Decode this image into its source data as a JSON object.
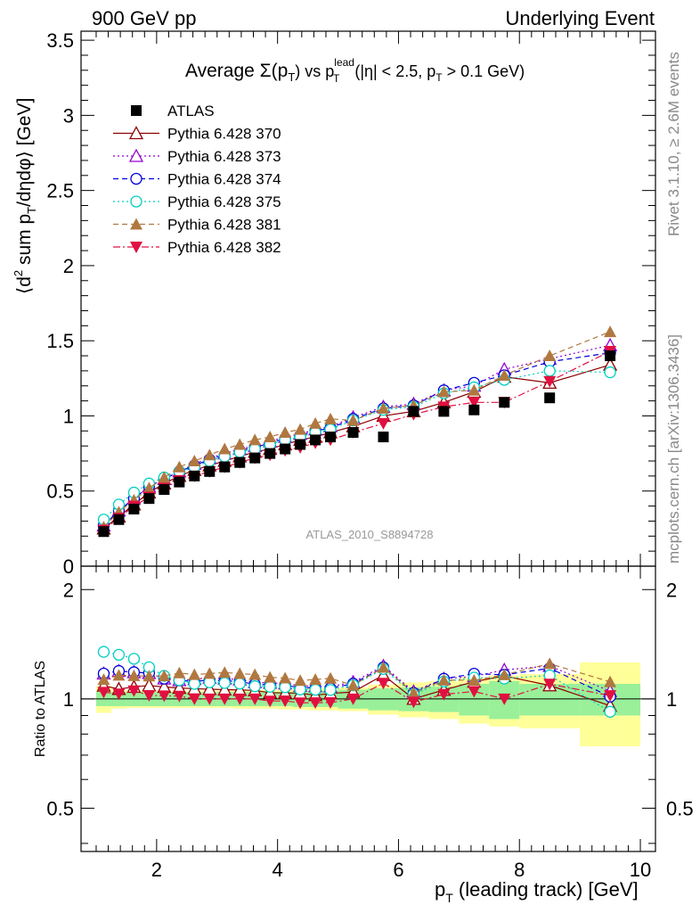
{
  "header": {
    "left": "900 GeV pp",
    "right": "Underlying Event"
  },
  "side": {
    "rivet": "Rivet 3.1.10, ≥ 2.6M events",
    "mcplots": "mcplots.cern.ch [arXiv:1306.3436]"
  },
  "chart_data": {
    "type": "scatter",
    "title_parts": {
      "pre": "Average ",
      "sigma": "Σ(p",
      "sigma_sub": "T",
      "mid": ") vs p",
      "lead_sup": "lead",
      "lead_sub": "T",
      "cuts": " (|η| < 2.5, p",
      "cuts_sub": "T",
      "tail": " > 0.1 GeV)"
    },
    "analysis_label": "ATLAS_2010_S8894728",
    "ylabel_main": "⟨d² sum p_T/dηdφ⟩ [GeV]",
    "ylabel_ratio": "Ratio to ATLAS",
    "xlabel": "p_T (leading track) [GeV]",
    "xlim": [
      0.75,
      10.25
    ],
    "ylim_main": [
      0,
      3.56
    ],
    "ylim_ratio": [
      0.38,
      2.32
    ],
    "ratio_scale": "log",
    "x_ticks": [
      "2",
      "4",
      "6",
      "8",
      "10"
    ],
    "y_ticks_main": [
      "0",
      "0.5",
      "1",
      "1.5",
      "2",
      "2.5",
      "3",
      "3.5"
    ],
    "y_ticks_ratio": [
      "0.5",
      "1",
      "2"
    ],
    "x": [
      1.125,
      1.375,
      1.625,
      1.875,
      2.125,
      2.375,
      2.625,
      2.875,
      3.125,
      3.375,
      3.625,
      3.875,
      4.125,
      4.375,
      4.625,
      4.875,
      5.25,
      5.75,
      6.25,
      6.75,
      7.25,
      7.75,
      8.5,
      9.5
    ],
    "x_bins": [
      [
        1.0,
        1.25
      ],
      [
        1.25,
        1.5
      ],
      [
        1.5,
        1.75
      ],
      [
        1.75,
        2.0
      ],
      [
        2.0,
        2.25
      ],
      [
        2.25,
        2.5
      ],
      [
        2.5,
        2.75
      ],
      [
        2.75,
        3.0
      ],
      [
        3.0,
        3.25
      ],
      [
        3.25,
        3.5
      ],
      [
        3.5,
        3.75
      ],
      [
        3.75,
        4.0
      ],
      [
        4.0,
        4.25
      ],
      [
        4.25,
        4.5
      ],
      [
        4.5,
        4.75
      ],
      [
        4.75,
        5.0
      ],
      [
        5.0,
        5.5
      ],
      [
        5.5,
        6.0
      ],
      [
        6.0,
        6.5
      ],
      [
        6.5,
        7.0
      ],
      [
        7.0,
        7.5
      ],
      [
        7.5,
        8.0
      ],
      [
        8.0,
        9.0
      ],
      [
        9.0,
        10.0
      ]
    ],
    "band_stat": [
      0.045,
      0.045,
      0.045,
      0.045,
      0.045,
      0.045,
      0.045,
      0.045,
      0.045,
      0.045,
      0.045,
      0.045,
      0.045,
      0.05,
      0.05,
      0.05,
      0.06,
      0.07,
      0.075,
      0.08,
      0.1,
      0.12,
      0.1,
      0.1
    ],
    "band_tot": [
      0.085,
      0.06,
      0.055,
      0.055,
      0.055,
      0.055,
      0.055,
      0.055,
      0.055,
      0.06,
      0.06,
      0.06,
      0.065,
      0.065,
      0.07,
      0.07,
      0.075,
      0.095,
      0.11,
      0.12,
      0.145,
      0.16,
      0.17,
      0.26
    ],
    "legend": {
      "placement": "top-left"
    },
    "series": [
      {
        "name": "ATLAS",
        "color": "#000000",
        "marker": "square-filled",
        "line": "none",
        "values": [
          0.23,
          0.31,
          0.38,
          0.45,
          0.51,
          0.56,
          0.6,
          0.63,
          0.66,
          0.69,
          0.72,
          0.75,
          0.78,
          0.81,
          0.84,
          0.86,
          0.89,
          0.86,
          1.03,
          1.03,
          1.04,
          1.09,
          1.12,
          1.4
        ]
      },
      {
        "name": "Pythia 6.428 370",
        "color": "#8b0000",
        "marker": "triangle-open",
        "line": "solid",
        "values": [
          0.25,
          0.33,
          0.41,
          0.49,
          0.55,
          0.6,
          0.64,
          0.67,
          0.7,
          0.73,
          0.76,
          0.78,
          0.81,
          0.84,
          0.86,
          0.89,
          0.93,
          1.0,
          1.03,
          1.09,
          1.16,
          1.26,
          1.22,
          1.34
        ]
      },
      {
        "name": "Pythia 6.428 373",
        "color": "#9400d3",
        "marker": "triangle-open",
        "line": "dotted",
        "values": [
          0.27,
          0.37,
          0.45,
          0.53,
          0.58,
          0.63,
          0.68,
          0.72,
          0.75,
          0.78,
          0.8,
          0.83,
          0.86,
          0.88,
          0.91,
          0.93,
          0.99,
          1.06,
          1.08,
          1.17,
          1.2,
          1.31,
          1.38,
          1.47
        ]
      },
      {
        "name": "Pythia 6.428 374",
        "color": "#0000dd",
        "marker": "circle-open",
        "line": "dashed",
        "values": [
          0.27,
          0.37,
          0.45,
          0.53,
          0.58,
          0.63,
          0.67,
          0.71,
          0.74,
          0.77,
          0.79,
          0.82,
          0.85,
          0.87,
          0.9,
          0.92,
          0.98,
          1.05,
          1.07,
          1.17,
          1.22,
          1.27,
          1.36,
          1.42
        ]
      },
      {
        "name": "Pythia 6.428 375",
        "color": "#00d0c0",
        "marker": "circle-open",
        "line": "dotted",
        "values": [
          0.31,
          0.41,
          0.49,
          0.55,
          0.59,
          0.63,
          0.66,
          0.7,
          0.73,
          0.76,
          0.78,
          0.81,
          0.84,
          0.86,
          0.89,
          0.91,
          0.97,
          1.04,
          1.06,
          1.15,
          1.19,
          1.24,
          1.3,
          1.29
        ]
      },
      {
        "name": "Pythia 6.428 381",
        "color": "#b07840",
        "marker": "triangle-filled",
        "line": "dashed",
        "values": [
          0.26,
          0.36,
          0.44,
          0.52,
          0.59,
          0.66,
          0.7,
          0.74,
          0.78,
          0.81,
          0.84,
          0.86,
          0.89,
          0.91,
          0.95,
          0.98,
          0.97,
          1.05,
          1.07,
          1.16,
          1.17,
          1.27,
          1.4,
          1.56
        ]
      },
      {
        "name": "Pythia 6.428 382",
        "color": "#e01040",
        "marker": "triangle-down-filled",
        "line": "dashdot",
        "values": [
          0.24,
          0.32,
          0.4,
          0.46,
          0.52,
          0.57,
          0.6,
          0.63,
          0.66,
          0.69,
          0.72,
          0.74,
          0.77,
          0.79,
          0.82,
          0.84,
          0.89,
          0.95,
          1.01,
          1.06,
          1.09,
          1.09,
          1.23,
          1.43
        ]
      }
    ]
  }
}
